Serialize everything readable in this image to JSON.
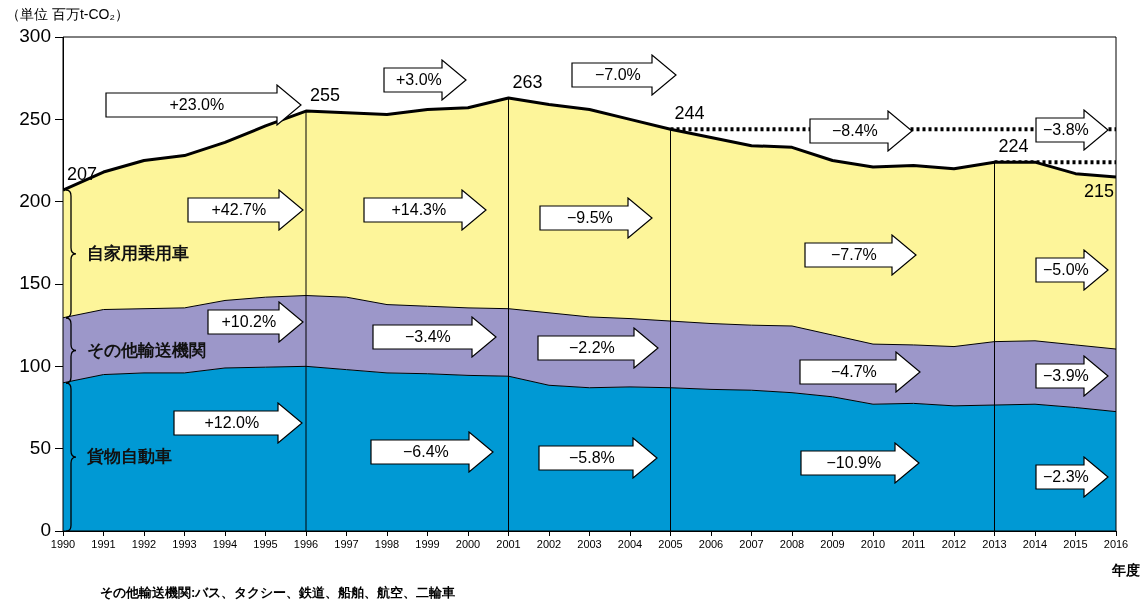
{
  "chart_data": {
    "type": "area",
    "stacked": true,
    "ylabel": "（単位 百万t-CO₂）",
    "xlabel": "年度",
    "x": [
      1990,
      1991,
      1992,
      1993,
      1994,
      1995,
      1996,
      1997,
      1998,
      1999,
      2000,
      2001,
      2002,
      2003,
      2004,
      2005,
      2006,
      2007,
      2008,
      2009,
      2010,
      2011,
      2012,
      2013,
      2014,
      2015,
      2016
    ],
    "series": [
      {
        "name": "貨物自動車",
        "color": "#0099d4",
        "values": [
          90,
          95,
          96,
          96,
          99,
          99.5,
          100,
          98,
          96,
          95.5,
          94.5,
          94,
          88.5,
          87,
          87.5,
          87,
          86,
          85.5,
          84,
          81.5,
          77,
          77.5,
          76,
          76.5,
          77,
          75,
          72.5
        ]
      },
      {
        "name": "その他輸送機関",
        "color": "#9c97c9",
        "values": [
          39.5,
          39.5,
          39,
          39.5,
          41,
          42.5,
          43,
          44,
          41.5,
          41,
          41,
          41,
          44,
          43,
          41.5,
          40.5,
          40,
          39.5,
          40.5,
          37.5,
          36.5,
          35.5,
          36,
          38.5,
          38.5,
          38,
          38
        ]
      },
      {
        "name": "自家用乗用車",
        "color": "#fdf59a",
        "values": [
          77.5,
          83.5,
          90,
          92.5,
          96,
          104,
          112,
          112,
          115.5,
          119.5,
          121.5,
          128,
          126.5,
          126,
          121,
          116.5,
          113,
          109,
          108.5,
          106,
          107.5,
          109,
          108,
          109,
          108.5,
          104,
          104.5
        ]
      },
      {
        "type": "line",
        "color": "#000000",
        "line_style": "dotted",
        "x": [
          2005,
          2016
        ],
        "values": [
          244,
          244
        ]
      },
      {
        "type": "line",
        "color": "#000000",
        "line_style": "dotted",
        "x": [
          2013,
          2016
        ],
        "values": [
          224,
          224
        ]
      }
    ],
    "totals": [
      "207",
      null,
      null,
      null,
      null,
      null,
      "255",
      null,
      null,
      null,
      null,
      "263",
      null,
      null,
      null,
      "244",
      null,
      null,
      null,
      null,
      null,
      null,
      null,
      "224",
      null,
      null,
      "215"
    ],
    "xlim": [
      1990,
      2016
    ],
    "xticks": [
      1990,
      1991,
      1992,
      1993,
      1994,
      1995,
      1996,
      1997,
      1998,
      1999,
      2000,
      2001,
      2002,
      2003,
      2004,
      2005,
      2006,
      2007,
      2008,
      2009,
      2010,
      2011,
      2012,
      2013,
      2014,
      2015,
      2016
    ],
    "ylim": [
      0,
      300
    ],
    "yticks": [
      0,
      50,
      100,
      150,
      200,
      250,
      300
    ],
    "grid": false,
    "legend": "left",
    "marker": "none",
    "ref_lines": [
      {
        "axis": "x",
        "value": 1996,
        "color": "#000000"
      },
      {
        "axis": "x",
        "value": 2001,
        "color": "#000000"
      },
      {
        "axis": "x",
        "value": 2005,
        "color": "#000000"
      },
      {
        "axis": "x",
        "value": 2013,
        "color": "#000000"
      }
    ],
    "annotations": [
      "+23.0%",
      "+3.0%",
      "−7.0%",
      "−8.4%",
      "−3.8%",
      "+42.7%",
      "+14.3%",
      "−9.5%",
      "−7.7%",
      "−5.0%",
      "+10.2%",
      "−3.4%",
      "−2.2%",
      "−4.7%",
      "−3.9%",
      "+12.0%",
      "−6.4%",
      "−5.8%",
      "−10.9%",
      "−2.3%",
      "その他輸送機関:バス、タクシー、鉄道、船舶、航空、二輪車"
    ]
  }
}
